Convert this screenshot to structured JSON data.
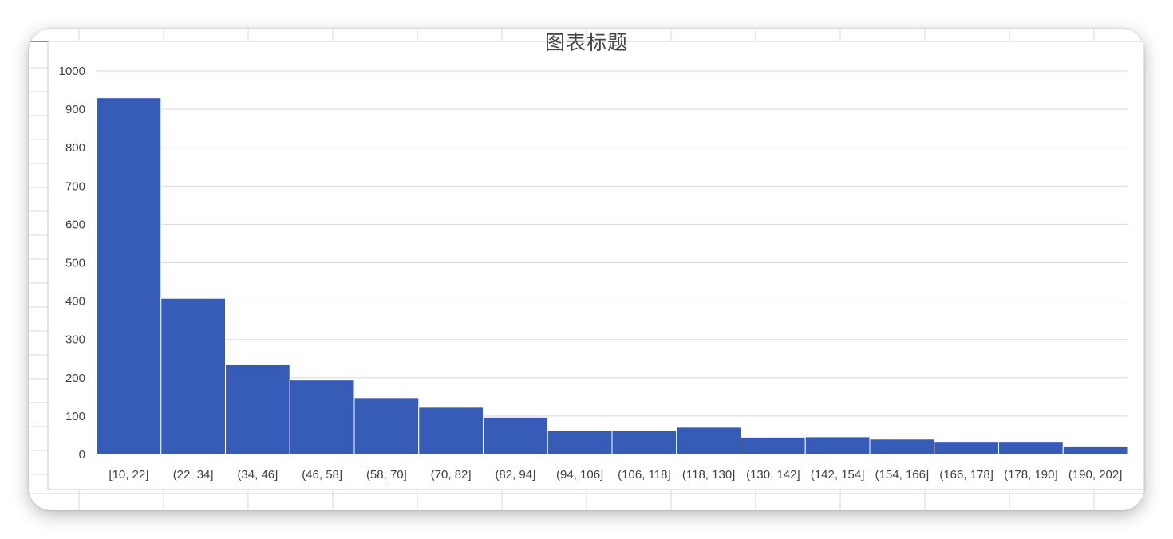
{
  "chart_data": {
    "type": "bar",
    "title": "图表标题",
    "xlabel": "",
    "ylabel": "",
    "categories": [
      "[10, 22]",
      "(22, 34]",
      "(34, 46]",
      "(46, 58]",
      "(58, 70]",
      "(70, 82]",
      "(82, 94]",
      "(94, 106]",
      "(106, 118]",
      "(118, 130]",
      "(130, 142]",
      "(142, 154]",
      "(154, 166]",
      "(166, 178]",
      "(178, 190]",
      "(190, 202]"
    ],
    "values": [
      930,
      407,
      234,
      194,
      148,
      123,
      97,
      63,
      63,
      71,
      45,
      46,
      40,
      34,
      34,
      22
    ],
    "ylim": [
      0,
      1000
    ],
    "yticks": [
      0,
      100,
      200,
      300,
      400,
      500,
      600,
      700,
      800,
      900,
      1000
    ],
    "grid": true,
    "legend": "none",
    "bar_color": "#365CB8"
  }
}
